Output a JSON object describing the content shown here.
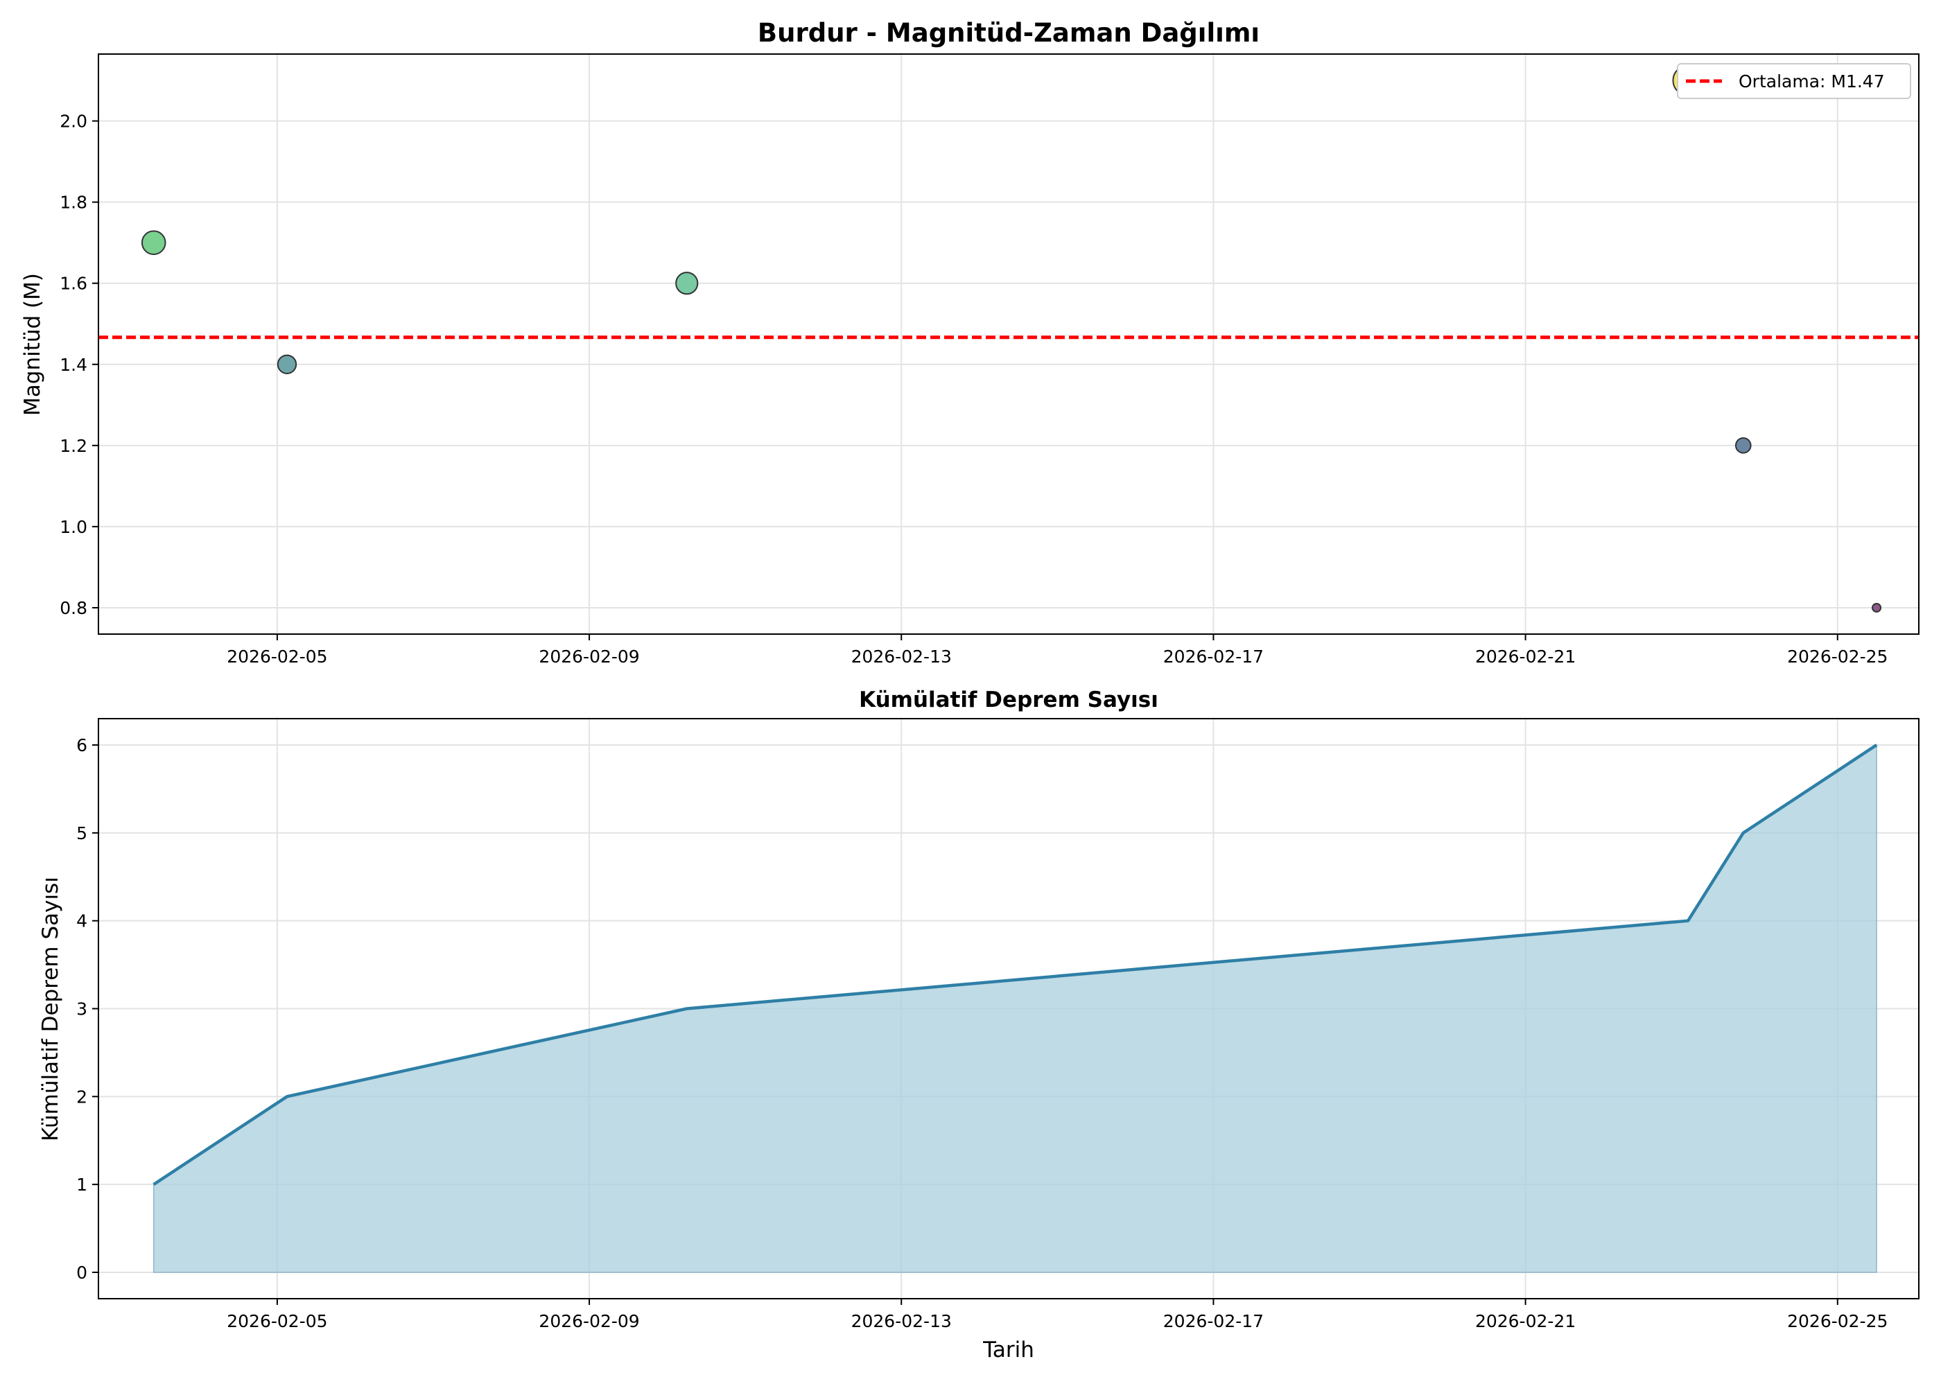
{
  "chart_data": [
    {
      "type": "scatter",
      "title": "Burdur - Magnitüd-Zaman Dağılımı",
      "xlabel": "",
      "ylabel": "Magnitüd (M)",
      "x_ticks": [
        "2026-02-05",
        "2026-02-09",
        "2026-02-13",
        "2026-02-17",
        "2026-02-21",
        "2026-02-25"
      ],
      "y_ticks": [
        "0.8",
        "1.0",
        "1.2",
        "1.4",
        "1.6",
        "1.8",
        "2.0"
      ],
      "xlim": [
        "2026-02-02T17:00",
        "2026-02-26T01:00"
      ],
      "ylim": [
        0.735,
        2.165
      ],
      "grid": true,
      "legend": "top-right",
      "points": [
        {
          "x": "2026-02-03T10:00",
          "y": 1.7,
          "color": "#7ad18f"
        },
        {
          "x": "2026-02-05T03:00",
          "y": 1.4,
          "color": "#6fa5a8"
        },
        {
          "x": "2026-02-10T06:00",
          "y": 1.6,
          "color": "#79c9a3"
        },
        {
          "x": "2026-02-23T02:00",
          "y": 2.1,
          "color": "#f4e66a"
        },
        {
          "x": "2026-02-23T19:00",
          "y": 1.2,
          "color": "#6b86a3"
        },
        {
          "x": "2026-02-25T12:00",
          "y": 0.8,
          "color": "#8a5a8a"
        }
      ],
      "mean_line": {
        "y": 1.4667,
        "label": "Ortalama: M1.47",
        "color": "#ff0000"
      }
    },
    {
      "type": "area",
      "title": "Kümülatif Deprem Sayısı",
      "xlabel": "Tarih",
      "ylabel": "Kümülatif Deprem Sayısı",
      "x_ticks": [
        "2026-02-05",
        "2026-02-09",
        "2026-02-13",
        "2026-02-17",
        "2026-02-21",
        "2026-02-25"
      ],
      "y_ticks": [
        "0",
        "1",
        "2",
        "3",
        "4",
        "5",
        "6"
      ],
      "xlim": [
        "2026-02-02T17:00",
        "2026-02-26T01:00"
      ],
      "ylim": [
        -0.3,
        6.3
      ],
      "grid": true,
      "line_color": "#2e7fa6",
      "fill_color": "#a9cfdd",
      "points": [
        {
          "x": "2026-02-03T10:00",
          "y": 1
        },
        {
          "x": "2026-02-05T03:00",
          "y": 2
        },
        {
          "x": "2026-02-10T06:00",
          "y": 3
        },
        {
          "x": "2026-02-23T02:00",
          "y": 4
        },
        {
          "x": "2026-02-23T19:00",
          "y": 5
        },
        {
          "x": "2026-02-25T12:00",
          "y": 6
        }
      ]
    }
  ]
}
